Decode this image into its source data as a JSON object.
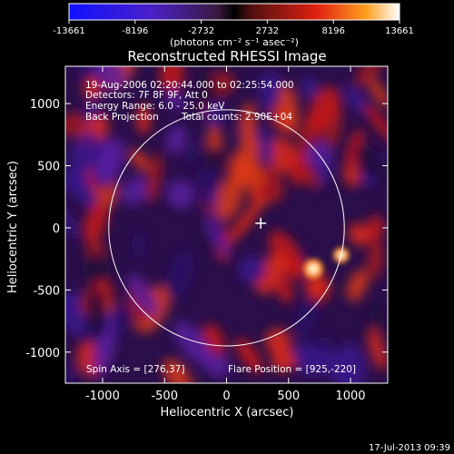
{
  "chart_data": {
    "type": "heatmap",
    "title": "Reconstructed RHESSI Image",
    "xlabel": "Heliocentric X (arcsec)",
    "ylabel": "Heliocentric Y (arcsec)",
    "xlim": [
      -1300,
      1300
    ],
    "ylim": [
      -1250,
      1300
    ],
    "xticks": [
      -1000,
      -500,
      0,
      500,
      1000
    ],
    "yticks": [
      -1000,
      -500,
      0,
      500,
      1000
    ],
    "colorbar": {
      "ticks": [
        "-13661",
        "-8196",
        "-2732",
        "2732",
        "8196",
        "13661"
      ],
      "min": -13661,
      "max": 13661,
      "unit_label": "(photons cm⁻² s⁻¹ asec⁻²)"
    },
    "annotations": {
      "time_range": "19-Aug-2006 02:20:44.000 to 02:25:54.000",
      "detectors": "Detectors: 7F 8F 9F, Att 0",
      "energy_range": "Energy Range: 6.0 - 25.0 keV",
      "method": "Back Projection",
      "total_counts": "Total counts: 2.90E+04",
      "spin_axis": "Spin Axis = [276,37]",
      "flare_position": "Flare Position = [925,-220]"
    },
    "solar_disk_radius": 950,
    "spin_axis_marker": [
      276,
      37
    ],
    "bright_sources": [
      {
        "x": 700,
        "y": -330,
        "value": 13661
      },
      {
        "x": 925,
        "y": -220,
        "value": 9500
      }
    ]
  },
  "footer": {
    "timestamp": "17-Jul-2013 09:39"
  },
  "colors": {
    "background": "#000000",
    "foreground": "#ffffff",
    "negative": "#3a1a8a",
    "positive": "#d8201a",
    "peak": "#ffffa0"
  }
}
